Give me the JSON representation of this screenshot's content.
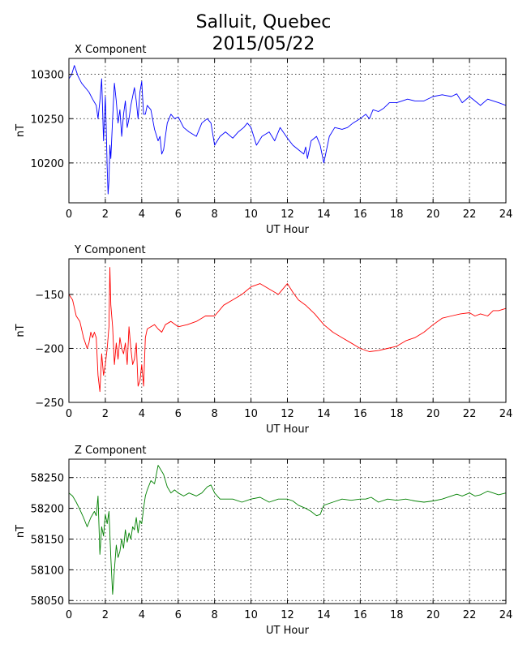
{
  "figure": {
    "title_line1": "Salluit, Quebec",
    "title_line2": "2015/05/22"
  },
  "chart_data": [
    {
      "type": "line",
      "title": "X Component",
      "xlabel": "UT Hour",
      "ylabel": "nT",
      "xlim": [
        0,
        24
      ],
      "ylim": [
        10155,
        10318
      ],
      "xticks": [
        0,
        2,
        4,
        6,
        8,
        10,
        12,
        14,
        16,
        18,
        20,
        22,
        24
      ],
      "yticks": [
        10200,
        10250,
        10300
      ],
      "grid": true,
      "color": "#0000ff",
      "series": [
        {
          "x": [
            0,
            0.15,
            0.3,
            0.5,
            0.7,
            0.9,
            1.1,
            1.3,
            1.5,
            1.6,
            1.7,
            1.8,
            1.9,
            2.0,
            2.05,
            2.1,
            2.15,
            2.2,
            2.25,
            2.3,
            2.4,
            2.5,
            2.6,
            2.7,
            2.8,
            2.9,
            3.0,
            3.1,
            3.2,
            3.3,
            3.4,
            3.5,
            3.6,
            3.7,
            3.8,
            3.9,
            4.0,
            4.1,
            4.2,
            4.3,
            4.5,
            4.7,
            4.9,
            5.0,
            5.1,
            5.2,
            5.3,
            5.4,
            5.6,
            5.8,
            6.0,
            6.3,
            6.6,
            7.0,
            7.3,
            7.6,
            7.8,
            8.0,
            8.3,
            8.6,
            9.0,
            9.3,
            9.6,
            9.8,
            10.0,
            10.3,
            10.6,
            11.0,
            11.3,
            11.6,
            12.0,
            12.3,
            12.6,
            12.9,
            13.0,
            13.1,
            13.3,
            13.6,
            13.8,
            14.0,
            14.3,
            14.6,
            15.0,
            15.3,
            15.6,
            16.0,
            16.3,
            16.5,
            16.7,
            17.0,
            17.3,
            17.6,
            18.0,
            18.3,
            18.6,
            19.0,
            19.5,
            20.0,
            20.5,
            21.0,
            21.3,
            21.6,
            22.0,
            22.3,
            22.6,
            23.0,
            23.3,
            23.6,
            24.0
          ],
          "y": [
            10295,
            10300,
            10310,
            10298,
            10290,
            10285,
            10280,
            10272,
            10265,
            10250,
            10270,
            10295,
            10225,
            10275,
            10240,
            10195,
            10165,
            10180,
            10220,
            10205,
            10250,
            10290,
            10270,
            10245,
            10260,
            10230,
            10255,
            10270,
            10240,
            10250,
            10265,
            10275,
            10285,
            10270,
            10250,
            10280,
            10292,
            10255,
            10255,
            10265,
            10260,
            10238,
            10225,
            10230,
            10210,
            10215,
            10230,
            10245,
            10255,
            10250,
            10252,
            10240,
            10235,
            10230,
            10245,
            10250,
            10245,
            10220,
            10230,
            10235,
            10228,
            10235,
            10240,
            10245,
            10240,
            10220,
            10230,
            10235,
            10225,
            10240,
            10228,
            10220,
            10215,
            10210,
            10218,
            10205,
            10225,
            10230,
            10220,
            10200,
            10230,
            10240,
            10238,
            10240,
            10245,
            10250,
            10255,
            10250,
            10260,
            10258,
            10262,
            10268,
            10268,
            10270,
            10272,
            10270,
            10270,
            10275,
            10277,
            10275,
            10278,
            10268,
            10275,
            10270,
            10265,
            10272,
            10270,
            10268,
            10265
          ]
        }
      ]
    },
    {
      "type": "line",
      "title": "Y Component",
      "xlabel": "UT Hour",
      "ylabel": "nT",
      "xlim": [
        0,
        24
      ],
      "ylim": [
        -250,
        -117
      ],
      "xticks": [
        0,
        2,
        4,
        6,
        8,
        10,
        12,
        14,
        16,
        18,
        20,
        22,
        24
      ],
      "yticks": [
        -250,
        -200,
        -150
      ],
      "grid": true,
      "color": "#ff0000",
      "series": [
        {
          "x": [
            0,
            0.2,
            0.4,
            0.6,
            0.8,
            1.0,
            1.1,
            1.2,
            1.3,
            1.4,
            1.5,
            1.6,
            1.7,
            1.8,
            1.9,
            2.0,
            2.1,
            2.2,
            2.25,
            2.3,
            2.4,
            2.5,
            2.6,
            2.7,
            2.8,
            2.9,
            3.0,
            3.1,
            3.2,
            3.3,
            3.4,
            3.5,
            3.6,
            3.7,
            3.8,
            3.9,
            4.0,
            4.1,
            4.2,
            4.3,
            4.5,
            4.7,
            4.9,
            5.1,
            5.3,
            5.6,
            6.0,
            6.5,
            7.0,
            7.5,
            8.0,
            8.5,
            9.0,
            9.5,
            10.0,
            10.5,
            11.0,
            11.5,
            12.0,
            12.3,
            12.6,
            13.0,
            13.5,
            14.0,
            14.5,
            15.0,
            15.5,
            16.0,
            16.5,
            17.0,
            17.5,
            18.0,
            18.5,
            19.0,
            19.5,
            20.0,
            20.5,
            21.0,
            21.5,
            22.0,
            22.3,
            22.6,
            23.0,
            23.3,
            23.6,
            24.0
          ],
          "y": [
            -150,
            -155,
            -170,
            -175,
            -190,
            -200,
            -195,
            -185,
            -190,
            -185,
            -190,
            -225,
            -240,
            -205,
            -225,
            -215,
            -200,
            -180,
            -125,
            -160,
            -180,
            -215,
            -195,
            -210,
            -190,
            -200,
            -205,
            -195,
            -215,
            -180,
            -200,
            -215,
            -210,
            -195,
            -235,
            -230,
            -215,
            -235,
            -190,
            -182,
            -180,
            -178,
            -182,
            -185,
            -178,
            -175,
            -180,
            -178,
            -175,
            -170,
            -170,
            -160,
            -155,
            -150,
            -143,
            -140,
            -145,
            -150,
            -140,
            -148,
            -155,
            -160,
            -168,
            -178,
            -185,
            -190,
            -195,
            -200,
            -203,
            -202,
            -200,
            -198,
            -193,
            -190,
            -185,
            -178,
            -172,
            -170,
            -168,
            -167,
            -170,
            -168,
            -170,
            -165,
            -165,
            -163
          ]
        }
      ]
    },
    {
      "type": "line",
      "title": "Z Component",
      "xlabel": "UT Hour",
      "ylabel": "nT",
      "xlim": [
        0,
        24
      ],
      "ylim": [
        58045,
        58280
      ],
      "xticks": [
        0,
        2,
        4,
        6,
        8,
        10,
        12,
        14,
        16,
        18,
        20,
        22,
        24
      ],
      "yticks": [
        58050,
        58100,
        58150,
        58200,
        58250
      ],
      "grid": true,
      "color": "#008000",
      "series": [
        {
          "x": [
            0,
            0.2,
            0.4,
            0.6,
            0.8,
            1.0,
            1.2,
            1.4,
            1.5,
            1.6,
            1.7,
            1.8,
            1.9,
            2.0,
            2.1,
            2.2,
            2.3,
            2.4,
            2.5,
            2.6,
            2.7,
            2.8,
            2.9,
            3.0,
            3.1,
            3.2,
            3.3,
            3.4,
            3.5,
            3.6,
            3.7,
            3.8,
            3.9,
            4.0,
            4.1,
            4.2,
            4.3,
            4.5,
            4.7,
            4.9,
            5.0,
            5.2,
            5.4,
            5.6,
            5.8,
            6.0,
            6.3,
            6.6,
            7.0,
            7.3,
            7.6,
            7.8,
            8.0,
            8.3,
            8.6,
            9.0,
            9.5,
            10.0,
            10.5,
            11.0,
            11.5,
            12.0,
            12.3,
            12.6,
            13.0,
            13.3,
            13.6,
            13.8,
            14.0,
            14.5,
            15.0,
            15.5,
            16.0,
            16.3,
            16.6,
            17.0,
            17.5,
            18.0,
            18.5,
            19.0,
            19.5,
            20.0,
            20.5,
            21.0,
            21.3,
            21.6,
            22.0,
            22.3,
            22.6,
            23.0,
            23.3,
            23.6,
            24.0
          ],
          "y": [
            58225,
            58220,
            58210,
            58198,
            58185,
            58170,
            58185,
            58195,
            58188,
            58220,
            58125,
            58170,
            58155,
            58190,
            58175,
            58195,
            58120,
            58060,
            58100,
            58140,
            58120,
            58130,
            58150,
            58135,
            58165,
            58145,
            58160,
            58150,
            58170,
            58165,
            58185,
            58160,
            58180,
            58175,
            58200,
            58220,
            58230,
            58245,
            58240,
            58270,
            58265,
            58255,
            58235,
            58225,
            58230,
            58225,
            58220,
            58225,
            58220,
            58225,
            58235,
            58238,
            58225,
            58215,
            58215,
            58215,
            58210,
            58215,
            58218,
            58210,
            58215,
            58215,
            58212,
            58205,
            58200,
            58195,
            58188,
            58190,
            58205,
            58210,
            58215,
            58213,
            58215,
            58215,
            58218,
            58210,
            58215,
            58213,
            58215,
            58212,
            58210,
            58212,
            58215,
            58220,
            58223,
            58220,
            58225,
            58220,
            58222,
            58228,
            58225,
            58222,
            58225
          ]
        }
      ]
    }
  ]
}
